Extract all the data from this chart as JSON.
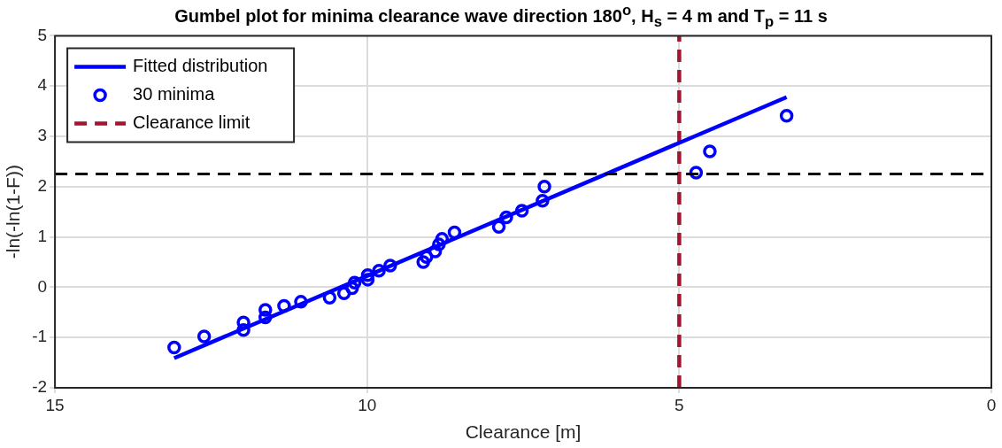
{
  "chart_data": {
    "type": "scatter",
    "title": "Gumbel plot for minima clearance wave direction 180$^{o}$, H$_{s}$ = 4 m and T$_{p}$ = 11 s",
    "xlabel": "Clearance [m]",
    "ylabel": "-ln(-ln(1-F))",
    "xlim": [
      15,
      0
    ],
    "xticks": [
      15,
      10,
      5,
      0
    ],
    "ylim": [
      -2,
      5
    ],
    "yticks": [
      -2,
      -1,
      0,
      1,
      2,
      3,
      4,
      5
    ],
    "grid": true,
    "legend": "top left",
    "series": [
      {
        "name": "Fitted distribution",
        "type": "line",
        "color": "#0000ff",
        "line_style": "solid",
        "marker": "none",
        "x": [
          13.09,
          3.28
        ],
        "values": [
          -1.41,
          3.78
        ]
      },
      {
        "name": "30 minima",
        "color": "#0000ff",
        "marker": "circle",
        "x": [
          13.09,
          12.61,
          11.98,
          11.98,
          11.63,
          11.63,
          11.33,
          11.06,
          10.6,
          10.37,
          10.24,
          10.2,
          9.99,
          9.99,
          9.81,
          9.63,
          9.1,
          9.05,
          8.91,
          8.85,
          8.8,
          8.6,
          7.89,
          7.77,
          7.52,
          7.19,
          7.16,
          4.73,
          4.51,
          3.28
        ],
        "values": [
          -1.2,
          -0.98,
          -0.7,
          -0.85,
          -0.45,
          -0.6,
          -0.37,
          -0.29,
          -0.21,
          -0.12,
          -0.02,
          0.09,
          0.15,
          0.24,
          0.33,
          0.43,
          0.5,
          0.6,
          0.71,
          0.85,
          0.96,
          1.09,
          1.2,
          1.39,
          1.52,
          1.72,
          2.0,
          2.28,
          2.7,
          3.41
        ]
      },
      {
        "name": "Clearance limit",
        "type": "line",
        "color": "#a2142f",
        "line_style": "dashed",
        "marker": "none",
        "x": [
          5,
          5
        ],
        "values": [
          -2,
          5
        ]
      }
    ],
    "ref_lines": [
      {
        "axis": "y",
        "value": 2.25,
        "color": "#000000",
        "line_style": "dashed"
      }
    ]
  }
}
